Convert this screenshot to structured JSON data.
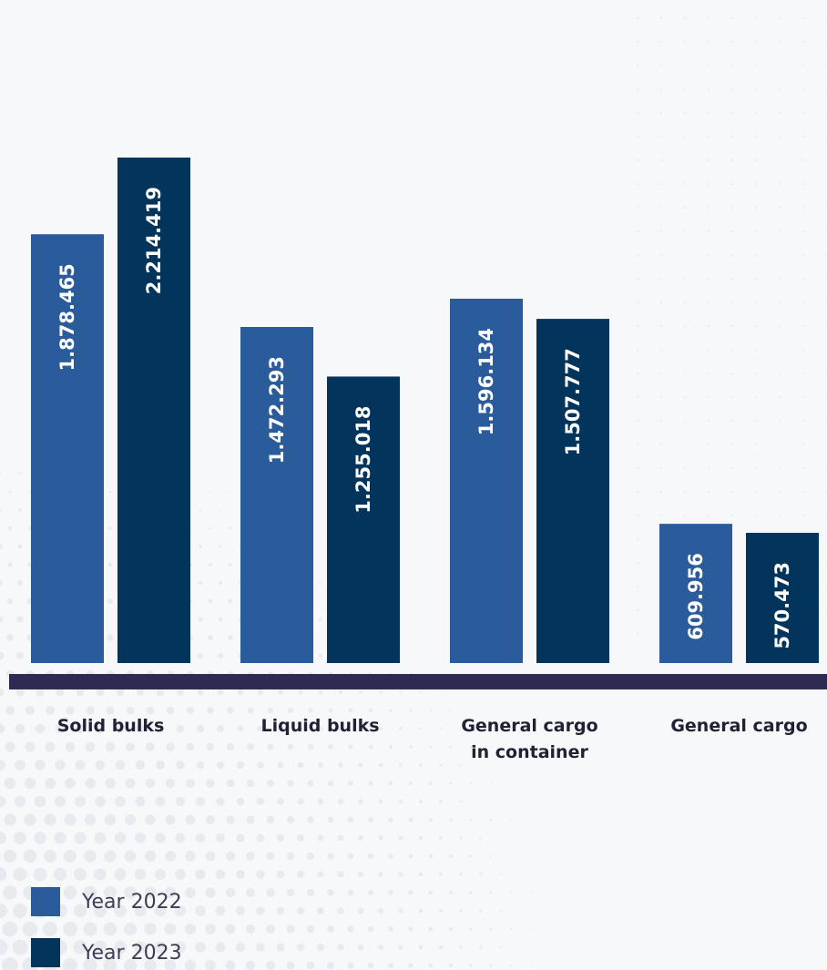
{
  "chart_data": {
    "type": "bar",
    "categories": [
      "Solid bulks",
      "Liquid bulks",
      "General cargo\nin container",
      "General cargo"
    ],
    "series": [
      {
        "name": "Year 2022",
        "color": "#2a5c9c",
        "values": [
          1878465,
          1472293,
          1596134,
          609956
        ],
        "labels": [
          "1.878.465",
          "1.472.293",
          "1.596.134",
          "609.956"
        ]
      },
      {
        "name": "Year 2023",
        "color": "#03345c",
        "values": [
          2214419,
          1255018,
          1507777,
          570473
        ],
        "labels": [
          "2.214.419",
          "1.255.018",
          "1.507.777",
          "570.473"
        ]
      }
    ],
    "title": "",
    "xlabel": "",
    "ylabel": "",
    "ylim": [
      0,
      2214419
    ],
    "grid": false,
    "legend": "bottom-left",
    "baseline_color": "#2d2b52"
  }
}
